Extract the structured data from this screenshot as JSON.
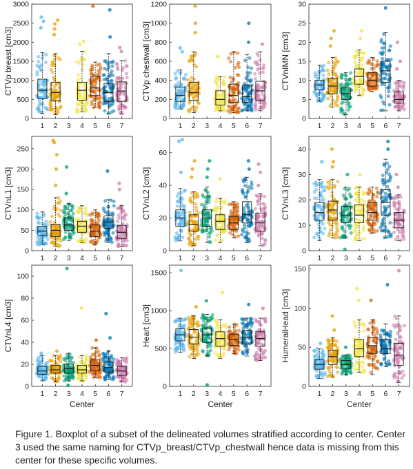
{
  "figure": {
    "caption": "Figure 1. Boxplot of a subset of the delineated volumes stratified according to center. Center 3 used the same naming for CTVp_breast/CTVp_chestwall hence data is missing from this center for these specific volumes."
  },
  "center_colors": [
    "#56B4E9",
    "#E69F00",
    "#009E73",
    "#F0E442",
    "#D55E00",
    "#0072B2",
    "#CC79A7"
  ],
  "chart_data": [
    {
      "type": "box",
      "ylabel": "CTVp breast [cm3]",
      "xlabel": "",
      "categories": [
        "1",
        "2",
        "3",
        "4",
        "5",
        "6",
        "7"
      ],
      "ylim": [
        0,
        3000
      ],
      "yticks": [
        0,
        500,
        1000,
        1500,
        2000,
        2500,
        3000
      ],
      "boxes": [
        {
          "center": "1",
          "min": 130,
          "q1": 520,
          "median": 740,
          "q3": 1030,
          "max": 1730,
          "outliers": [
            2380,
            2550,
            2660
          ]
        },
        {
          "center": "2",
          "min": 100,
          "q1": 460,
          "median": 680,
          "q3": 950,
          "max": 1700,
          "outliers": [
            2200,
            2350,
            2480,
            2580
          ]
        },
        null,
        {
          "center": "4",
          "min": 170,
          "q1": 480,
          "median": 740,
          "q3": 950,
          "max": 1760,
          "outliers": [
            1950,
            2020
          ]
        },
        {
          "center": "5",
          "min": 280,
          "q1": 600,
          "median": 800,
          "q3": 1110,
          "max": 1480,
          "outliers": [
            2950
          ]
        },
        {
          "center": "6",
          "min": 130,
          "q1": 450,
          "median": 680,
          "q3": 920,
          "max": 1700,
          "outliers": [
            2140,
            2850
          ]
        },
        {
          "center": "7",
          "min": 120,
          "q1": 450,
          "median": 720,
          "q3": 960,
          "max": 1520,
          "outliers": [
            1760,
            1860
          ]
        }
      ]
    },
    {
      "type": "box",
      "ylabel": "CTVp chestwall [cm3]",
      "xlabel": "",
      "categories": [
        "1",
        "2",
        "3",
        "4",
        "5",
        "6",
        "7"
      ],
      "ylim": [
        0,
        1200
      ],
      "yticks": [
        0,
        200,
        400,
        600,
        800,
        1000,
        1200
      ],
      "boxes": [
        {
          "center": "1",
          "min": 100,
          "q1": 180,
          "median": 240,
          "q3": 330,
          "max": 510,
          "outliers": [
            700,
            740
          ]
        },
        {
          "center": "2",
          "min": 60,
          "q1": 190,
          "median": 270,
          "q3": 380,
          "max": 700,
          "outliers": [
            900,
            1000,
            1180
          ]
        },
        null,
        {
          "center": "4",
          "min": 80,
          "q1": 140,
          "median": 200,
          "q3": 290,
          "max": 440,
          "outliers": [
            650
          ]
        },
        {
          "center": "5",
          "min": 60,
          "q1": 170,
          "median": 240,
          "q3": 360,
          "max": 700,
          "outliers": []
        },
        {
          "center": "6",
          "min": 80,
          "q1": 170,
          "median": 230,
          "q3": 350,
          "max": 670,
          "outliers": [
            1000,
            800
          ]
        },
        {
          "center": "7",
          "min": 80,
          "q1": 190,
          "median": 290,
          "q3": 390,
          "max": 700,
          "outliers": [
            780
          ]
        }
      ]
    },
    {
      "type": "box",
      "ylabel": "CTVnIMN [cm3]",
      "xlabel": "",
      "categories": [
        "1",
        "2",
        "3",
        "4",
        "5",
        "6",
        "7"
      ],
      "ylim": [
        0,
        30
      ],
      "yticks": [
        0,
        5,
        10,
        15,
        20,
        25,
        30
      ],
      "boxes": [
        {
          "center": "1",
          "min": 4.5,
          "q1": 7.5,
          "median": 8.8,
          "q3": 10,
          "max": 14,
          "outliers": []
        },
        {
          "center": "2",
          "min": 3,
          "q1": 6.5,
          "median": 8.5,
          "q3": 10.5,
          "max": 16,
          "outliers": [
            19,
            21,
            23
          ]
        },
        {
          "center": "3",
          "min": 1,
          "q1": 5,
          "median": 6.5,
          "q3": 8,
          "max": 12,
          "outliers": []
        },
        {
          "center": "4",
          "min": 6,
          "q1": 9,
          "median": 11,
          "q3": 13,
          "max": 18,
          "outliers": [
            21,
            23
          ]
        },
        {
          "center": "5",
          "min": 7,
          "q1": 8.5,
          "median": 10,
          "q3": 12,
          "max": 16,
          "outliers": []
        },
        {
          "center": "6",
          "min": 2,
          "q1": 9.5,
          "median": 12.5,
          "q3": 15,
          "max": 22.5,
          "outliers": [
            29
          ]
        },
        {
          "center": "7",
          "min": 2,
          "q1": 4,
          "median": 5,
          "q3": 7,
          "max": 10,
          "outliers": [
            13,
            15,
            20
          ]
        }
      ]
    },
    {
      "type": "box",
      "ylabel": "CTVnL1 [cm3]",
      "xlabel": "",
      "categories": [
        "1",
        "2",
        "3",
        "4",
        "5",
        "6",
        "7"
      ],
      "ylim": [
        0,
        280
      ],
      "yticks": [
        0,
        50,
        100,
        150,
        200,
        250
      ],
      "boxes": [
        {
          "center": "1",
          "min": 15,
          "q1": 38,
          "median": 48,
          "q3": 60,
          "max": 95,
          "outliers": []
        },
        {
          "center": "2",
          "min": 10,
          "q1": 35,
          "median": 50,
          "q3": 65,
          "max": 130,
          "outliers": [
            160,
            200,
            235,
            265,
            270
          ]
        },
        {
          "center": "3",
          "min": 25,
          "q1": 50,
          "median": 63,
          "q3": 80,
          "max": 115,
          "outliers": [
            140,
            205
          ]
        },
        {
          "center": "4",
          "min": 20,
          "q1": 45,
          "median": 60,
          "q3": 72,
          "max": 110,
          "outliers": []
        },
        {
          "center": "5",
          "min": 15,
          "q1": 35,
          "median": 48,
          "q3": 63,
          "max": 100,
          "outliers": []
        },
        {
          "center": "6",
          "min": 20,
          "q1": 55,
          "median": 70,
          "q3": 85,
          "max": 125,
          "outliers": [
            195
          ]
        },
        {
          "center": "7",
          "min": 10,
          "q1": 30,
          "median": 45,
          "q3": 62,
          "max": 110,
          "outliers": [
            150,
            165
          ]
        }
      ]
    },
    {
      "type": "box",
      "ylabel": "CTVnL2 [cm3]",
      "xlabel": "",
      "categories": [
        "1",
        "2",
        "3",
        "4",
        "5",
        "6",
        "7"
      ],
      "ylim": [
        0,
        70
      ],
      "yticks": [
        0,
        20,
        40,
        60
      ],
      "boxes": [
        {
          "center": "1",
          "min": 6,
          "q1": 15,
          "median": 20,
          "q3": 25,
          "max": 38,
          "outliers": [
            48,
            67,
            68
          ]
        },
        {
          "center": "2",
          "min": 3,
          "q1": 12,
          "median": 16,
          "q3": 22,
          "max": 36,
          "outliers": [
            45,
            50,
            55
          ]
        },
        {
          "center": "3",
          "min": 5,
          "q1": 15,
          "median": 20,
          "q3": 25,
          "max": 39,
          "outliers": [
            45,
            50,
            55
          ]
        },
        {
          "center": "4",
          "min": 5,
          "q1": 13,
          "median": 18,
          "q3": 22,
          "max": 32,
          "outliers": [
            44
          ]
        },
        {
          "center": "5",
          "min": 8,
          "q1": 13,
          "median": 17,
          "q3": 21,
          "max": 30,
          "outliers": []
        },
        {
          "center": "6",
          "min": 5,
          "q1": 17,
          "median": 22,
          "q3": 30,
          "max": 45,
          "outliers": [
            50,
            55
          ]
        },
        {
          "center": "7",
          "min": 3,
          "q1": 12,
          "median": 17,
          "q3": 23,
          "max": 35,
          "outliers": [
            40,
            48,
            53
          ]
        }
      ]
    },
    {
      "type": "box",
      "ylabel": "CTVnL3 [cm3]",
      "xlabel": "",
      "categories": [
        "1",
        "2",
        "3",
        "4",
        "5",
        "6",
        "7"
      ],
      "ylim": [
        0,
        45
      ],
      "yticks": [
        0,
        10,
        20,
        30,
        40
      ],
      "boxes": [
        {
          "center": "1",
          "min": 4,
          "q1": 12,
          "median": 15,
          "q3": 19,
          "max": 28,
          "outliers": [
            35
          ]
        },
        {
          "center": "2",
          "min": 5,
          "q1": 12,
          "median": 16,
          "q3": 19.5,
          "max": 28,
          "outliers": [
            33,
            35,
            40
          ]
        },
        {
          "center": "3",
          "min": 5,
          "q1": 11,
          "median": 14,
          "q3": 17.5,
          "max": 25,
          "outliers": [
            0.5,
            30
          ]
        },
        {
          "center": "4",
          "min": 4,
          "q1": 11,
          "median": 14,
          "q3": 18,
          "max": 25,
          "outliers": [
            30
          ]
        },
        {
          "center": "5",
          "min": 7,
          "q1": 12,
          "median": 15,
          "q3": 19,
          "max": 25,
          "outliers": []
        },
        {
          "center": "6",
          "min": 5,
          "q1": 14,
          "median": 19,
          "q3": 24,
          "max": 36,
          "outliers": [
            40,
            43
          ]
        },
        {
          "center": "7",
          "min": 4,
          "q1": 9,
          "median": 12,
          "q3": 15,
          "max": 22,
          "outliers": [
            25,
            30
          ]
        }
      ]
    },
    {
      "type": "box",
      "ylabel": "CTVnL4 [cm3]",
      "xlabel": "Center",
      "categories": [
        "1",
        "2",
        "3",
        "4",
        "5",
        "6",
        "7"
      ],
      "ylim": [
        0,
        110
      ],
      "yticks": [
        0,
        20,
        40,
        60,
        80,
        100
      ],
      "boxes": [
        {
          "center": "1",
          "min": 5,
          "q1": 11,
          "median": 14,
          "q3": 18,
          "max": 28,
          "outliers": [
            30
          ]
        },
        {
          "center": "2",
          "min": 4,
          "q1": 12,
          "median": 15,
          "q3": 19,
          "max": 28,
          "outliers": [
            32
          ]
        },
        {
          "center": "3",
          "min": 5,
          "q1": 12,
          "median": 16,
          "q3": 20,
          "max": 30,
          "outliers": [
            1,
            107
          ]
        },
        {
          "center": "4",
          "min": 5,
          "q1": 12,
          "median": 15,
          "q3": 19,
          "max": 28,
          "outliers": [
            71
          ]
        },
        {
          "center": "5",
          "min": 8,
          "q1": 14,
          "median": 19,
          "q3": 24,
          "max": 35,
          "outliers": [
            42
          ]
        },
        {
          "center": "6",
          "min": 6,
          "q1": 13,
          "median": 17,
          "q3": 22,
          "max": 32,
          "outliers": [
            44,
            66
          ]
        },
        {
          "center": "7",
          "min": 4,
          "q1": 10,
          "median": 14,
          "q3": 18,
          "max": 26,
          "outliers": []
        }
      ]
    },
    {
      "type": "box",
      "ylabel": "Heart [cm3]",
      "xlabel": "Center",
      "categories": [
        "1",
        "2",
        "3",
        "4",
        "5",
        "6",
        "7"
      ],
      "ylim": [
        0,
        1600
      ],
      "yticks": [
        0,
        500,
        1000,
        1500
      ],
      "boxes": [
        {
          "center": "1",
          "min": 450,
          "q1": 600,
          "median": 680,
          "q3": 760,
          "max": 900,
          "outliers": [
            1530
          ]
        },
        {
          "center": "2",
          "min": 370,
          "q1": 560,
          "median": 650,
          "q3": 750,
          "max": 930,
          "outliers": [
            1050
          ]
        },
        {
          "center": "3",
          "min": 400,
          "q1": 580,
          "median": 680,
          "q3": 770,
          "max": 950,
          "outliers": [
            20,
            1130
          ]
        },
        {
          "center": "4",
          "min": 370,
          "q1": 530,
          "median": 630,
          "q3": 720,
          "max": 880,
          "outliers": [
            1240
          ]
        },
        {
          "center": "5",
          "min": 430,
          "q1": 540,
          "median": 620,
          "q3": 690,
          "max": 820,
          "outliers": []
        },
        {
          "center": "6",
          "min": 400,
          "q1": 560,
          "median": 650,
          "q3": 740,
          "max": 900,
          "outliers": [
            1080
          ]
        },
        {
          "center": "7",
          "min": 340,
          "q1": 530,
          "median": 630,
          "q3": 720,
          "max": 900,
          "outliers": [
            1030
          ]
        }
      ]
    },
    {
      "type": "box",
      "ylabel": "HumeralHead [cm3]",
      "xlabel": "Center",
      "categories": [
        "1",
        "2",
        "3",
        "4",
        "5",
        "6",
        "7"
      ],
      "ylim": [
        0,
        155
      ],
      "yticks": [
        0,
        50,
        100,
        150
      ],
      "boxes": [
        {
          "center": "1",
          "min": 10,
          "q1": 22,
          "median": 28,
          "q3": 34,
          "max": 48,
          "outliers": [
            55
          ]
        },
        {
          "center": "2",
          "min": 12,
          "q1": 28,
          "median": 38,
          "q3": 46,
          "max": 62,
          "outliers": [
            72,
            90
          ]
        },
        {
          "center": "3",
          "min": 15,
          "q1": 23,
          "median": 28,
          "q3": 33,
          "max": 40,
          "outliers": [
            50
          ]
        },
        {
          "center": "4",
          "min": 18,
          "q1": 38,
          "median": 48,
          "q3": 60,
          "max": 85,
          "outliers": [
            110,
            125
          ]
        },
        {
          "center": "5",
          "min": 15,
          "q1": 42,
          "median": 52,
          "q3": 62,
          "max": 85,
          "outliers": [
            110
          ]
        },
        {
          "center": "6",
          "min": 25,
          "q1": 42,
          "median": 48,
          "q3": 60,
          "max": 80,
          "outliers": [
            130
          ]
        },
        {
          "center": "7",
          "min": 5,
          "q1": 27,
          "median": 40,
          "q3": 55,
          "max": 90,
          "outliers": [
            148
          ]
        }
      ]
    }
  ]
}
